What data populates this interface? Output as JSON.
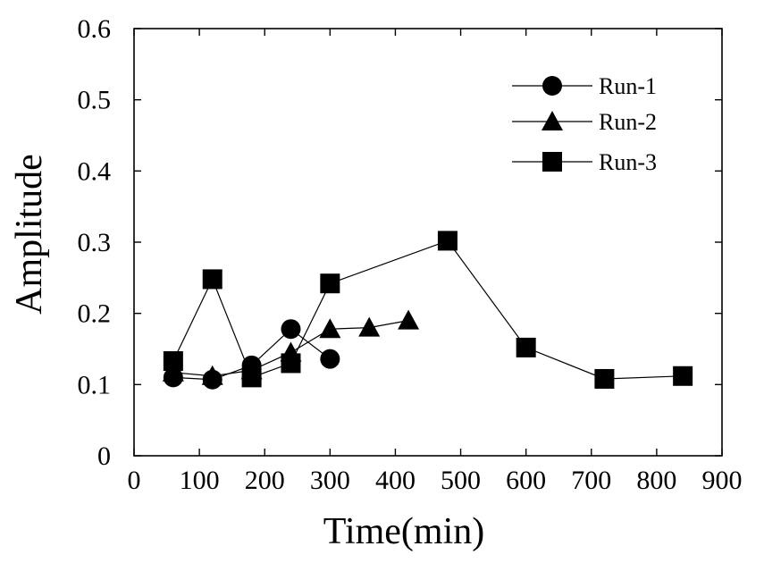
{
  "chart_data": {
    "type": "line",
    "title": "",
    "xlabel": "Time(min)",
    "ylabel": "Amplitude",
    "xlim": [
      0,
      900
    ],
    "ylim": [
      0,
      0.6
    ],
    "xticks": [
      0,
      100,
      200,
      300,
      400,
      500,
      600,
      700,
      800,
      900
    ],
    "yticks": [
      0,
      0.1,
      0.2,
      0.3,
      0.4,
      0.5,
      0.6
    ],
    "xtick_labels": [
      "0",
      "100",
      "200",
      "300",
      "400",
      "500",
      "600",
      "700",
      "800",
      "900"
    ],
    "ytick_labels": [
      "0",
      "0.1",
      "0.2",
      "0.3",
      "0.4",
      "0.5",
      "0.6"
    ],
    "grid": false,
    "legend_position": "top-right",
    "series": [
      {
        "name": "Run-1",
        "marker": "circle",
        "color": "#000000",
        "x": [
          60,
          120,
          180,
          240,
          300
        ],
        "y": [
          0.11,
          0.107,
          0.127,
          0.178,
          0.136
        ]
      },
      {
        "name": "Run-2",
        "marker": "triangle",
        "color": "#000000",
        "x": [
          60,
          120,
          180,
          240,
          300,
          360,
          420
        ],
        "y": [
          0.117,
          0.112,
          0.12,
          0.145,
          0.178,
          0.18,
          0.19
        ]
      },
      {
        "name": "Run-3",
        "marker": "square",
        "color": "#000000",
        "x": [
          60,
          120,
          180,
          240,
          300,
          480,
          600,
          720,
          840
        ],
        "y": [
          0.133,
          0.248,
          0.11,
          0.13,
          0.242,
          0.302,
          0.152,
          0.108,
          0.112
        ]
      }
    ]
  }
}
